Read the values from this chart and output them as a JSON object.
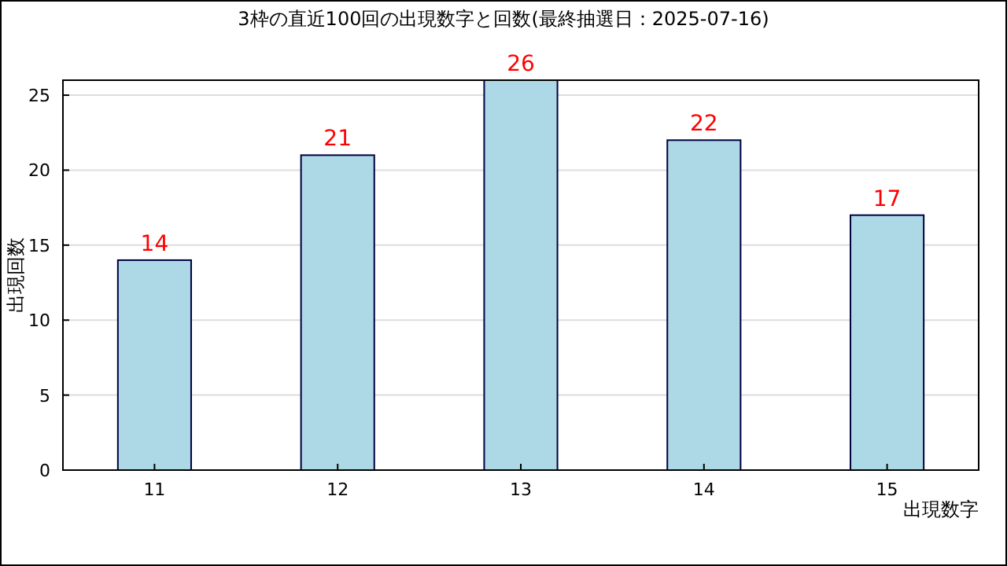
{
  "chart_data": {
    "type": "bar",
    "title": "3枠の直近100回の出現数字と回数(最終抽選日：2025-07-16)",
    "xlabel": "出現数字",
    "ylabel": "出現回数",
    "categories": [
      "11",
      "12",
      "13",
      "14",
      "15"
    ],
    "values": [
      14,
      21,
      26,
      22,
      17
    ],
    "color": "#add8e6",
    "ylim": [
      0,
      26
    ],
    "yticks": [
      0,
      5,
      10,
      15,
      20,
      25
    ],
    "grid": "y",
    "data_labels": true
  }
}
